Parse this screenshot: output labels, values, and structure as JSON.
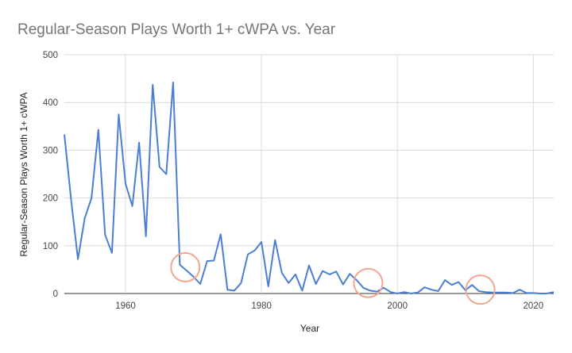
{
  "chart_data": {
    "type": "line",
    "title": "Regular-Season Plays Worth 1+ cWPA vs. Year",
    "xlabel": "Year",
    "ylabel": "Regular-Season Plays Worth 1+ cWPA",
    "xlim": [
      1951,
      2023
    ],
    "ylim": [
      0,
      500
    ],
    "x_ticks": [
      1960,
      1980,
      2000,
      2020
    ],
    "y_ticks": [
      0,
      100,
      200,
      300,
      400,
      500
    ],
    "grid": true,
    "legend": "none",
    "line_color": "#4a7fd4",
    "annotation_color": "#f4a58f",
    "annotations": [
      {
        "type": "circle",
        "x": 1968.8,
        "y": 55
      },
      {
        "type": "circle",
        "x": 1995.7,
        "y": 22
      },
      {
        "type": "circle",
        "x": 2012.2,
        "y": 8
      }
    ],
    "series": [
      {
        "x": [
          1951,
          1952,
          1953,
          1954,
          1955,
          1956,
          1957,
          1958,
          1959,
          1960,
          1961,
          1962,
          1963,
          1964,
          1965,
          1966,
          1967,
          1968,
          1969,
          1970,
          1971,
          1972,
          1973,
          1974,
          1975,
          1976,
          1977,
          1978,
          1979,
          1980,
          1981,
          1982,
          1983,
          1984,
          1985,
          1986,
          1987,
          1988,
          1989,
          1990,
          1991,
          1992,
          1993,
          1994,
          1995,
          1996,
          1997,
          1998,
          1999,
          2000,
          2001,
          2002,
          2003,
          2004,
          2005,
          2006,
          2007,
          2008,
          2009,
          2010,
          2011,
          2012,
          2013,
          2014,
          2015,
          2016,
          2017,
          2018,
          2019,
          2020,
          2021,
          2022,
          2023
        ],
        "y": [
          333,
          195,
          72,
          158,
          200,
          343,
          123,
          85,
          375,
          230,
          183,
          316,
          120,
          437,
          265,
          250,
          442,
          60,
          48,
          35,
          20,
          68,
          69,
          124,
          8,
          6,
          22,
          82,
          90,
          108,
          15,
          112,
          43,
          22,
          40,
          6,
          59,
          20,
          47,
          40,
          46,
          19,
          41,
          28,
          12,
          6,
          4,
          12,
          3,
          0,
          3,
          0,
          2,
          13,
          8,
          5,
          28,
          18,
          24,
          7,
          18,
          5,
          3,
          2,
          2,
          2,
          1,
          8,
          1,
          1,
          0,
          0,
          3
        ]
      }
    ]
  }
}
